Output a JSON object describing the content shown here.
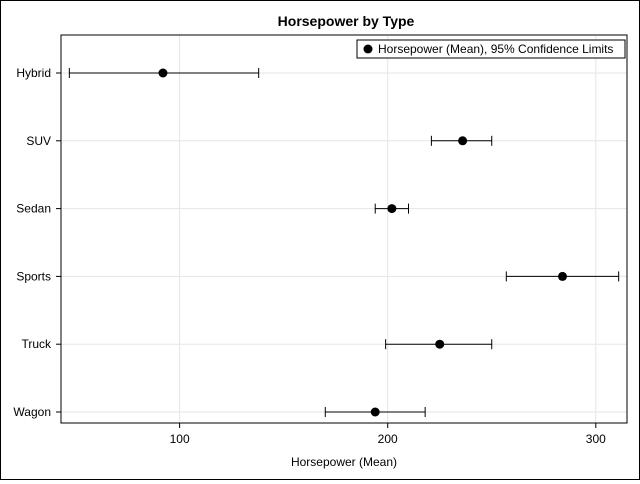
{
  "chart_data": {
    "type": "scatter",
    "title": "Horsepower by Type",
    "xlabel": "Horsepower (Mean)",
    "ylabel": "",
    "categories": [
      "Hybrid",
      "SUV",
      "Sedan",
      "Sports",
      "Truck",
      "Wagon"
    ],
    "x_ticks": [
      100,
      200,
      300
    ],
    "xlim": [
      43,
      315
    ],
    "grid": true,
    "legend": {
      "position": "top-right",
      "label": "Horsepower (Mean), 95% Confidence Limits"
    },
    "series": [
      {
        "name": "Horsepower (Mean), 95% Confidence Limits",
        "points": [
          {
            "category": "Hybrid",
            "mean": 92,
            "lower": 47,
            "upper": 138
          },
          {
            "category": "SUV",
            "mean": 236,
            "lower": 221,
            "upper": 250
          },
          {
            "category": "Sedan",
            "mean": 202,
            "lower": 194,
            "upper": 210
          },
          {
            "category": "Sports",
            "mean": 284,
            "lower": 257,
            "upper": 311
          },
          {
            "category": "Truck",
            "mean": 225,
            "lower": 199,
            "upper": 250
          },
          {
            "category": "Wagon",
            "mean": 194,
            "lower": 170,
            "upper": 218
          }
        ]
      }
    ],
    "colors": {
      "marker": "#000000",
      "grid": "#e6e6e6",
      "axis": "#000000"
    }
  }
}
